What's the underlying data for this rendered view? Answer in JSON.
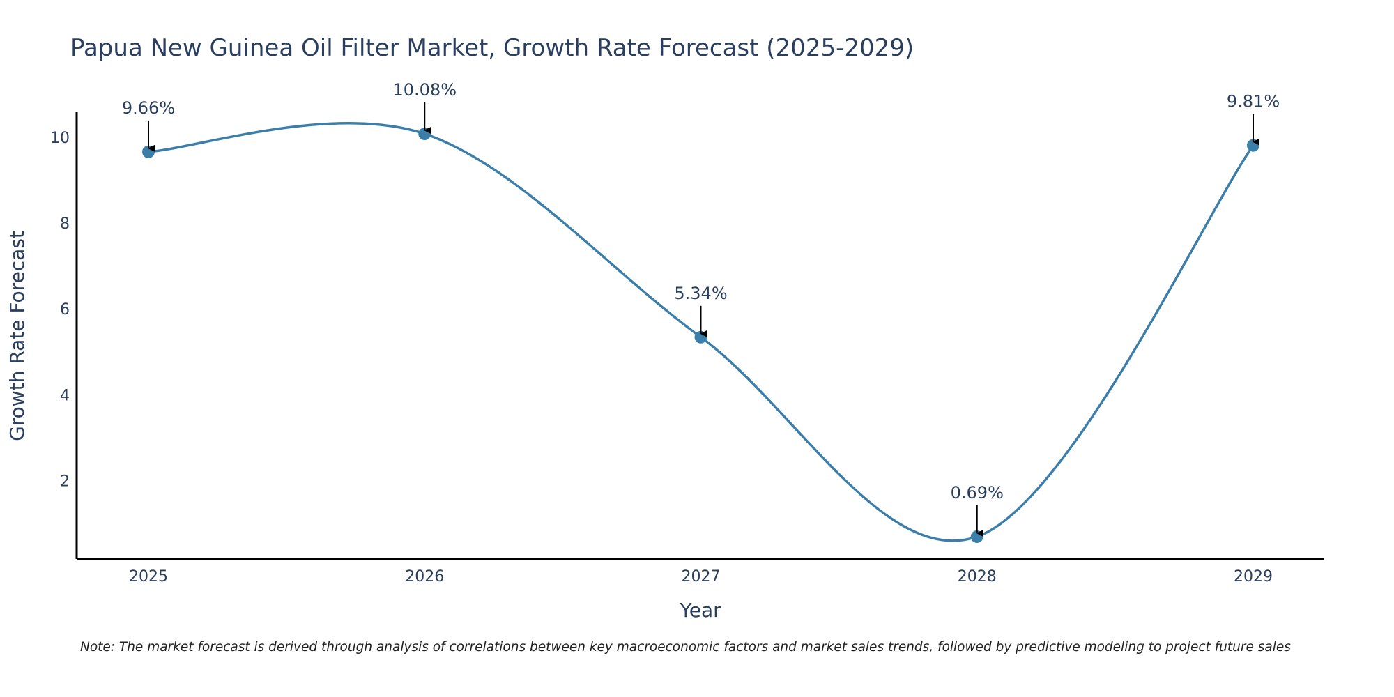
{
  "chart_data": {
    "type": "line",
    "title": "Papua New Guinea Oil Filter Market, Growth Rate Forecast (2025-2029)",
    "xlabel": "Year",
    "ylabel": "Growth Rate Forecast",
    "categories": [
      "2025",
      "2026",
      "2027",
      "2028",
      "2029"
    ],
    "values": [
      9.66,
      10.08,
      5.34,
      0.69,
      9.81
    ],
    "data_labels": [
      "9.66%",
      "10.08%",
      "5.34%",
      "0.69%",
      "9.81%"
    ],
    "yticks": [
      2,
      4,
      6,
      8,
      10
    ],
    "ylim": [
      0.17,
      10.6
    ],
    "line_shape": "spline",
    "grid": false,
    "legend": "none",
    "line_color": "#3b7ea9",
    "marker_color": "#3b7ea9",
    "arrow_color": "#000000",
    "axis_color": "#000000"
  },
  "note": "Note: The market forecast is derived through analysis of correlations between key macroeconomic factors and market sales trends, followed by predictive modeling to project future sales"
}
